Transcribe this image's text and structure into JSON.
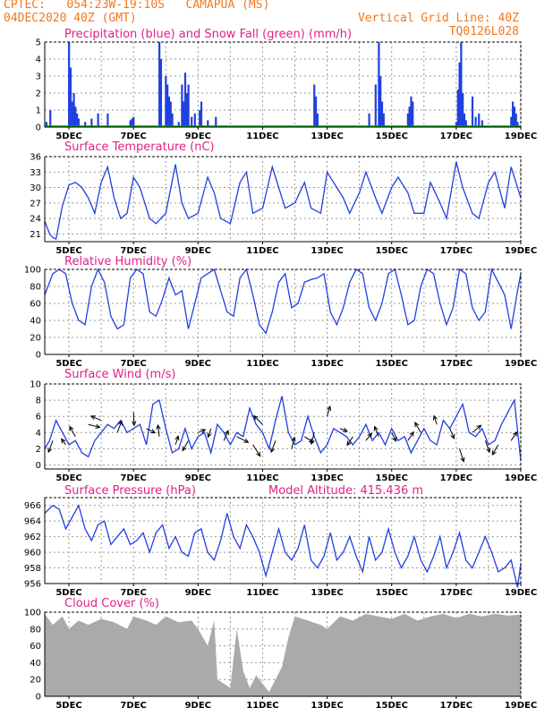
{
  "header": {
    "station_line": "CPTEC:   054:23W-19:10S   CAMAPUA (MS)",
    "time_line": "04DEC2020 40Z (GMT)",
    "grid_note": "Vertical Grid Line: 40Z",
    "code": "TQ0126L028",
    "model_altitude": "Model Altitude: 415.436 m"
  },
  "colors": {
    "header": "#f07820",
    "title": "#e0208a",
    "line": "#2040e0",
    "bar": "#2040e0",
    "snow": "#00a000",
    "cloud": "#aaaaaa",
    "wind_arrow": "#000000"
  },
  "x_axis": {
    "labels": [
      "5DEC",
      "7DEC",
      "9DEC",
      "11DEC",
      "13DEC",
      "15DEC",
      "17DEC",
      "19DEC"
    ],
    "label_days": [
      5,
      7,
      9,
      11,
      13,
      15,
      17,
      19
    ],
    "range_days": [
      4.25,
      19
    ]
  },
  "chart_data": [
    {
      "id": "precip",
      "type": "bar",
      "title": "Precipitation (blue) and Snow Fall (green) (mm/h)",
      "ylim": [
        0,
        5
      ],
      "yticks": [
        "0",
        "1",
        "2",
        "3",
        "4",
        "5"
      ],
      "series": [
        {
          "name": "Precipitation",
          "color": "#2040e0",
          "x": [
            4.3,
            4.42,
            5.0,
            5.05,
            5.1,
            5.15,
            5.2,
            5.25,
            5.3,
            5.5,
            5.7,
            5.9,
            6.2,
            6.9,
            6.95,
            7.0,
            7.8,
            7.85,
            8.0,
            8.05,
            8.1,
            8.15,
            8.2,
            8.4,
            8.5,
            8.55,
            8.6,
            8.65,
            8.7,
            8.8,
            8.9,
            9.05,
            9.1,
            9.3,
            9.55,
            12.6,
            12.65,
            12.7,
            14.3,
            14.5,
            14.6,
            14.65,
            14.7,
            14.75,
            15.5,
            15.55,
            15.6,
            15.65,
            17.0,
            17.05,
            17.1,
            17.15,
            17.2,
            17.25,
            17.3,
            17.5,
            17.6,
            17.7,
            17.8,
            18.7,
            18.75,
            18.8,
            18.85,
            18.9
          ],
          "values": [
            0.3,
            1.0,
            5.0,
            3.5,
            1.5,
            2.0,
            1.2,
            0.8,
            0.5,
            0.3,
            0.5,
            0.8,
            0.8,
            0.4,
            0.5,
            0.6,
            5.0,
            4.0,
            3.0,
            2.5,
            1.8,
            1.5,
            0.8,
            0.3,
            2.5,
            1.5,
            3.2,
            2.0,
            2.5,
            0.6,
            0.8,
            1.0,
            1.5,
            0.4,
            0.6,
            2.5,
            1.8,
            0.8,
            0.8,
            2.5,
            5.0,
            3.0,
            1.5,
            0.8,
            0.8,
            1.2,
            1.8,
            1.5,
            0.3,
            2.2,
            3.8,
            5.0,
            2.0,
            0.8,
            0.4,
            1.8,
            0.6,
            0.8,
            0.4,
            0.6,
            1.5,
            1.2,
            0.8,
            0.3
          ]
        },
        {
          "name": "Snow Fall",
          "color": "#00a000",
          "x": [
            4.25,
            19
          ],
          "values": [
            0,
            0
          ]
        }
      ]
    },
    {
      "id": "temperature",
      "type": "line",
      "title": "Surface Temperature (nC)",
      "ylim": [
        19.5,
        36
      ],
      "yticks": [
        "21",
        "24",
        "27",
        "30",
        "33",
        "36"
      ],
      "ytick_values": [
        21,
        24,
        27,
        30,
        33,
        36
      ],
      "series": [
        {
          "name": "Temperature",
          "color": "#2040e0",
          "x": [
            4.25,
            4.4,
            4.5,
            4.6,
            4.8,
            5.0,
            5.2,
            5.4,
            5.6,
            5.8,
            6.0,
            6.2,
            6.4,
            6.6,
            6.8,
            7.0,
            7.2,
            7.5,
            7.7,
            8.0,
            8.3,
            8.5,
            8.7,
            9.0,
            9.3,
            9.5,
            9.7,
            10.0,
            10.3,
            10.5,
            10.7,
            11.0,
            11.3,
            11.5,
            11.7,
            12.0,
            12.3,
            12.5,
            12.8,
            13.0,
            13.3,
            13.5,
            13.7,
            14.0,
            14.2,
            14.5,
            14.7,
            15.0,
            15.2,
            15.5,
            15.7,
            16.0,
            16.2,
            16.5,
            16.7,
            17.0,
            17.2,
            17.5,
            17.7,
            18.0,
            18.2,
            18.5,
            18.7,
            19.0
          ],
          "values": [
            23.5,
            21,
            20.3,
            20,
            26.5,
            30.5,
            31,
            30,
            28,
            25,
            31,
            34,
            28,
            24,
            25,
            32,
            30,
            24,
            23,
            25,
            34.5,
            27,
            24,
            25,
            32,
            29,
            24,
            23,
            31,
            33,
            25,
            26,
            34,
            30,
            26,
            27,
            31,
            26,
            25,
            33,
            30,
            28,
            25,
            29,
            33,
            28,
            25,
            30,
            32,
            29,
            25,
            25,
            31,
            27,
            24,
            35,
            30,
            25,
            24,
            31,
            33,
            26,
            34,
            28
          ]
        }
      ]
    },
    {
      "id": "humidity",
      "type": "line",
      "title": "Relative Humidity (%)",
      "ylim": [
        0,
        100
      ],
      "yticks": [
        "0",
        "20",
        "40",
        "60",
        "80",
        "100"
      ],
      "ytick_values": [
        0,
        20,
        40,
        60,
        80,
        100
      ],
      "series": [
        {
          "name": "Relative Humidity",
          "color": "#2040e0",
          "x": [
            4.25,
            4.5,
            4.7,
            4.9,
            5.1,
            5.3,
            5.5,
            5.7,
            5.9,
            6.1,
            6.3,
            6.5,
            6.7,
            6.9,
            7.1,
            7.3,
            7.5,
            7.7,
            7.9,
            8.1,
            8.3,
            8.5,
            8.7,
            8.9,
            9.1,
            9.3,
            9.5,
            9.7,
            9.9,
            10.1,
            10.3,
            10.5,
            10.7,
            10.9,
            11.1,
            11.3,
            11.5,
            11.7,
            11.9,
            12.1,
            12.3,
            12.5,
            12.7,
            12.9,
            13.1,
            13.3,
            13.5,
            13.7,
            13.9,
            14.1,
            14.3,
            14.5,
            14.7,
            14.9,
            15.1,
            15.3,
            15.5,
            15.7,
            15.9,
            16.1,
            16.3,
            16.5,
            16.7,
            16.9,
            17.1,
            17.3,
            17.5,
            17.7,
            17.9,
            18.1,
            18.3,
            18.5,
            18.7,
            18.9,
            19.0
          ],
          "values": [
            70,
            95,
            100,
            95,
            60,
            40,
            35,
            80,
            100,
            85,
            45,
            30,
            35,
            90,
            100,
            95,
            50,
            45,
            65,
            90,
            70,
            75,
            30,
            60,
            90,
            95,
            100,
            75,
            50,
            45,
            90,
            100,
            70,
            35,
            25,
            50,
            85,
            95,
            55,
            60,
            85,
            88,
            90,
            95,
            50,
            35,
            55,
            85,
            100,
            95,
            55,
            40,
            60,
            95,
            100,
            70,
            35,
            40,
            80,
            100,
            95,
            60,
            35,
            55,
            100,
            95,
            55,
            40,
            50,
            100,
            85,
            70,
            30,
            75,
            95
          ]
        }
      ]
    },
    {
      "id": "wind",
      "type": "line",
      "title": "Surface Wind (m/s)",
      "ylim": [
        -0.5,
        10
      ],
      "yticks": [
        "0",
        "2",
        "4",
        "6",
        "8",
        "10"
      ],
      "ytick_values": [
        0,
        2,
        4,
        6,
        8,
        10
      ],
      "series": [
        {
          "name": "Wind Speed",
          "color": "#2040e0",
          "x": [
            4.25,
            4.4,
            4.6,
            4.8,
            5.0,
            5.2,
            5.4,
            5.6,
            5.8,
            6.0,
            6.2,
            6.4,
            6.6,
            6.8,
            7.0,
            7.2,
            7.4,
            7.6,
            7.8,
            8.0,
            8.2,
            8.4,
            8.6,
            8.8,
            9.0,
            9.2,
            9.4,
            9.6,
            9.8,
            10.0,
            10.2,
            10.4,
            10.6,
            10.8,
            11.0,
            11.2,
            11.4,
            11.6,
            11.8,
            12.0,
            12.2,
            12.4,
            12.6,
            12.8,
            13.0,
            13.2,
            13.4,
            13.6,
            13.8,
            14.0,
            14.2,
            14.4,
            14.6,
            14.8,
            15.0,
            15.2,
            15.4,
            15.6,
            15.8,
            16.0,
            16.2,
            16.4,
            16.6,
            16.8,
            17.0,
            17.2,
            17.4,
            17.6,
            17.8,
            18.0,
            18.2,
            18.4,
            18.6,
            18.8,
            19.0
          ],
          "values": [
            2.0,
            3.0,
            5.5,
            4.0,
            2.5,
            3.0,
            1.5,
            1.0,
            3.0,
            4.0,
            5.0,
            4.5,
            5.5,
            4.0,
            4.5,
            5.0,
            2.5,
            7.5,
            8.0,
            4.5,
            1.5,
            2.0,
            4.5,
            2.0,
            3.5,
            4.0,
            1.5,
            5.0,
            4.0,
            2.5,
            4.0,
            3.5,
            7.0,
            5.0,
            4.0,
            2.0,
            5.5,
            8.5,
            4.0,
            2.5,
            3.0,
            6.0,
            3.5,
            1.5,
            2.5,
            4.5,
            4.0,
            3.5,
            2.5,
            3.5,
            5.0,
            3.0,
            4.0,
            2.5,
            4.5,
            3.0,
            3.5,
            1.5,
            3.0,
            4.5,
            3.0,
            2.5,
            5.5,
            4.5,
            6.0,
            7.5,
            4.0,
            3.5,
            4.5,
            2.5,
            3.0,
            5.0,
            6.5,
            8.0,
            0.5
          ]
        }
      ]
    },
    {
      "id": "pressure",
      "type": "line",
      "title": "Surface Pressure (hPa)",
      "ylim": [
        956,
        967
      ],
      "yticks": [
        "956",
        "958",
        "960",
        "962",
        "964",
        "966"
      ],
      "ytick_values": [
        956,
        958,
        960,
        962,
        964,
        966
      ],
      "series": [
        {
          "name": "Surface Pressure",
          "color": "#2040e0",
          "x": [
            4.25,
            4.5,
            4.7,
            4.9,
            5.1,
            5.3,
            5.5,
            5.7,
            5.9,
            6.1,
            6.3,
            6.5,
            6.7,
            6.9,
            7.1,
            7.3,
            7.5,
            7.7,
            7.9,
            8.1,
            8.3,
            8.5,
            8.7,
            8.9,
            9.1,
            9.3,
            9.5,
            9.7,
            9.9,
            10.1,
            10.3,
            10.5,
            10.7,
            10.9,
            11.1,
            11.3,
            11.5,
            11.7,
            11.9,
            12.1,
            12.3,
            12.5,
            12.7,
            12.9,
            13.1,
            13.3,
            13.5,
            13.7,
            13.9,
            14.1,
            14.3,
            14.5,
            14.7,
            14.9,
            15.1,
            15.3,
            15.5,
            15.7,
            15.9,
            16.1,
            16.3,
            16.5,
            16.7,
            16.9,
            17.1,
            17.3,
            17.5,
            17.7,
            17.9,
            18.1,
            18.3,
            18.5,
            18.7,
            18.9,
            19.0
          ],
          "values": [
            965,
            966,
            965.5,
            963,
            964.5,
            966,
            963,
            961.5,
            963.5,
            964,
            961,
            962,
            963,
            961,
            961.5,
            962.5,
            960,
            962.5,
            963.5,
            960.5,
            962,
            960,
            959.5,
            962.5,
            963,
            960,
            959,
            961.5,
            965,
            962,
            960.5,
            963.5,
            962,
            960,
            957,
            960,
            963,
            960,
            959,
            960.5,
            963.5,
            959,
            958,
            959.5,
            962.5,
            959,
            960,
            962,
            959.5,
            957.5,
            962,
            959,
            960,
            963,
            960,
            958,
            959.5,
            962,
            959,
            957.5,
            959.5,
            962,
            958,
            960,
            962.5,
            959,
            958,
            960,
            962,
            960,
            957.5,
            958,
            959,
            955.5,
            958.5
          ]
        }
      ]
    },
    {
      "id": "cloud",
      "type": "area",
      "title": "Cloud Cover (%)",
      "ylim": [
        0,
        100
      ],
      "yticks": [
        "0",
        "20",
        "40",
        "60",
        "80",
        "100"
      ],
      "ytick_values": [
        0,
        20,
        40,
        60,
        80,
        100
      ],
      "series": [
        {
          "name": "Cloud Cover",
          "color": "#aaaaaa",
          "x": [
            4.25,
            4.5,
            4.8,
            5.0,
            5.3,
            5.6,
            6.0,
            6.4,
            6.8,
            7.0,
            7.4,
            7.7,
            8.0,
            8.4,
            8.8,
            9.0,
            9.3,
            9.5,
            9.6,
            9.8,
            10.0,
            10.2,
            10.4,
            10.6,
            10.8,
            11.0,
            11.2,
            11.4,
            11.6,
            11.8,
            12.0,
            12.4,
            12.8,
            13.0,
            13.4,
            13.8,
            14.2,
            14.6,
            15.0,
            15.4,
            15.8,
            16.2,
            16.6,
            17.0,
            17.4,
            17.8,
            18.2,
            18.6,
            19.0
          ],
          "values": [
            98,
            85,
            95,
            80,
            90,
            85,
            92,
            88,
            80,
            95,
            90,
            85,
            95,
            88,
            90,
            80,
            60,
            90,
            20,
            15,
            10,
            80,
            30,
            10,
            25,
            15,
            5,
            20,
            35,
            70,
            95,
            90,
            85,
            80,
            95,
            90,
            98,
            95,
            92,
            98,
            90,
            95,
            98,
            93,
            98,
            95,
            98,
            96,
            97
          ]
        }
      ]
    }
  ],
  "wind_arrows": {
    "x": [
      4.5,
      4.9,
      5.2,
      5.6,
      6.0,
      6.5,
      7.0,
      7.4,
      7.8,
      8.3,
      8.7,
      9.0,
      9.4,
      9.8,
      10.2,
      10.7,
      11.0,
      11.4,
      11.9,
      12.3,
      12.6,
      13.0,
      13.4,
      13.8,
      14.2,
      14.6,
      15.0,
      15.5,
      15.9,
      16.4,
      16.8,
      17.1,
      17.5,
      17.9,
      18.3,
      18.7
    ],
    "y": [
      3.0,
      2.5,
      3.5,
      5.0,
      5.5,
      4.0,
      6.5,
      4.5,
      3.5,
      2.5,
      3.0,
      4.0,
      4.5,
      3.0,
      3.5,
      2.5,
      5.0,
      3.0,
      2.0,
      3.5,
      4.0,
      6.0,
      4.5,
      3.5,
      3.0,
      3.5,
      4.0,
      3.0,
      4.0,
      5.0,
      4.5,
      2.0,
      4.0,
      3.0,
      2.5,
      3.0
    ],
    "u": [
      -0.3,
      -0.3,
      -0.4,
      0.8,
      -0.7,
      0.3,
      0.05,
      0.6,
      -0.1,
      0.2,
      -0.4,
      0.5,
      -0.2,
      0.3,
      0.8,
      0.5,
      -0.6,
      -0.3,
      0.2,
      0.6,
      -0.2,
      0.2,
      0.5,
      -0.4,
      0.4,
      -0.3,
      0.3,
      0.4,
      -0.4,
      -0.2,
      0.3,
      0.3,
      0.6,
      0.3,
      -0.4,
      0.4
    ],
    "v": [
      -0.8,
      0.4,
      0.7,
      -0.2,
      0.3,
      0.8,
      -0.9,
      -0.3,
      0.8,
      0.6,
      -0.7,
      0.2,
      -0.6,
      0.7,
      -0.4,
      -0.8,
      0.6,
      -0.8,
      0.8,
      -0.4,
      -0.8,
      0.7,
      -0.2,
      -0.6,
      0.5,
      0.7,
      -0.6,
      0.6,
      0.7,
      0.6,
      -0.7,
      -0.9,
      0.5,
      -0.8,
      -0.7,
      0.6
    ]
  }
}
